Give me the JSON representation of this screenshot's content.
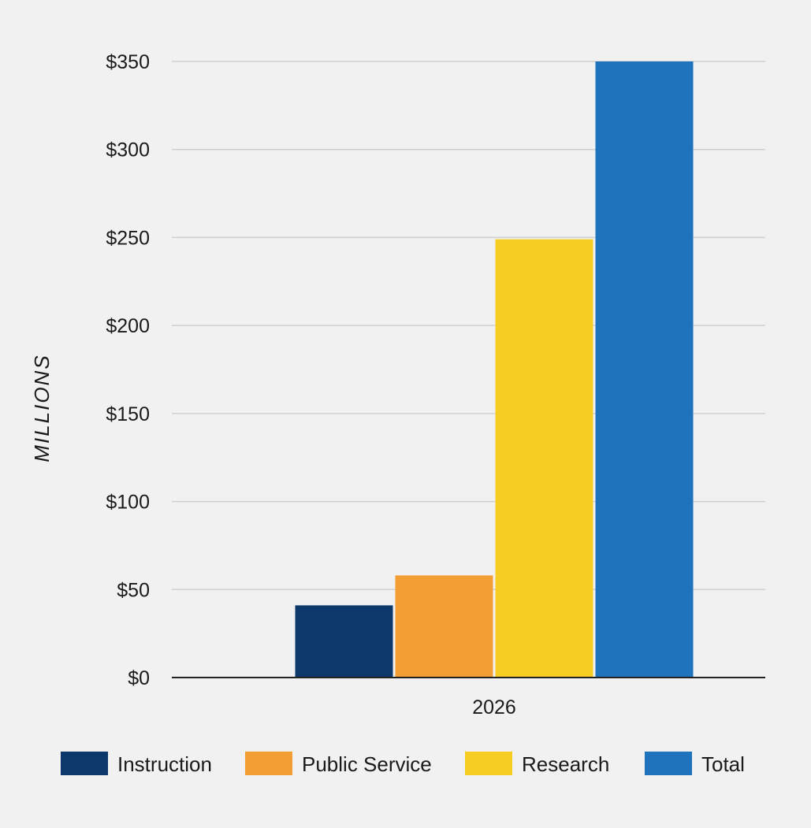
{
  "chart_data": {
    "type": "bar",
    "title": "",
    "xlabel": "",
    "ylabel": "MILLIONS",
    "categories": [
      "2026"
    ],
    "series": [
      {
        "name": "Instruction",
        "values": [
          41
        ],
        "color": "#0d386b"
      },
      {
        "name": "Public Service",
        "values": [
          58
        ],
        "color": "#f29e35"
      },
      {
        "name": "Research",
        "values": [
          249
        ],
        "color": "#f8cd23"
      },
      {
        "name": "Total",
        "values": [
          350
        ],
        "color": "#1f73bd"
      }
    ],
    "ylim": [
      0,
      350
    ],
    "yticks": [
      0,
      50,
      100,
      150,
      200,
      250,
      300,
      350
    ],
    "ytick_labels": [
      "$0",
      "$50",
      "$100",
      "$150",
      "$200",
      "$250",
      "$300",
      "$350"
    ],
    "grid": true,
    "legend_position": "bottom"
  }
}
